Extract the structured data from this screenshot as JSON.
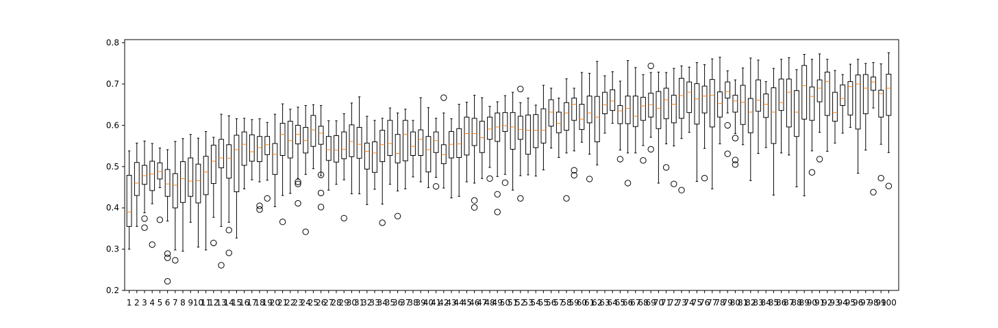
{
  "chart_data": {
    "type": "boxplot",
    "title": "",
    "xlabel": "",
    "ylabel": "",
    "ylim": [
      0.2,
      0.8
    ],
    "yticks": [
      0.2,
      0.3,
      0.4,
      0.5,
      0.6,
      0.7,
      0.8
    ],
    "grid": false,
    "legend": "none",
    "colors": {
      "box": "#000000",
      "median": "#ff7f0e",
      "whisker": "#000000",
      "flier": "#000000"
    },
    "categories": [
      "1",
      "2",
      "3",
      "4",
      "5",
      "6",
      "7",
      "8",
      "9",
      "10",
      "11",
      "12",
      "13",
      "14",
      "15",
      "16",
      "17",
      "18",
      "19",
      "20",
      "21",
      "22",
      "23",
      "24",
      "25",
      "26",
      "27",
      "28",
      "29",
      "30",
      "31",
      "32",
      "33",
      "34",
      "35",
      "36",
      "37",
      "38",
      "39",
      "40",
      "41",
      "42",
      "43",
      "44",
      "45",
      "46",
      "47",
      "48",
      "49",
      "50",
      "51",
      "52",
      "53",
      "54",
      "55",
      "56",
      "57",
      "58",
      "59",
      "60",
      "61",
      "62",
      "63",
      "64",
      "65",
      "66",
      "67",
      "68",
      "69",
      "70",
      "71",
      "72",
      "73",
      "74",
      "75",
      "76",
      "77",
      "78",
      "79",
      "80",
      "81",
      "82",
      "83",
      "84",
      "85",
      "86",
      "87",
      "88",
      "89",
      "90",
      "91",
      "92",
      "93",
      "94",
      "95",
      "96",
      "97",
      "98",
      "99",
      "100"
    ],
    "boxes": [
      {
        "whislo": 0.3,
        "q1": 0.355,
        "med": 0.39,
        "q3": 0.479,
        "whishi": 0.538,
        "fliers": []
      },
      {
        "whislo": 0.355,
        "q1": 0.43,
        "med": 0.46,
        "q3": 0.51,
        "whishi": 0.557,
        "fliers": []
      },
      {
        "whislo": 0.388,
        "q1": 0.457,
        "med": 0.478,
        "q3": 0.503,
        "whishi": 0.562,
        "fliers": [
          0.374,
          0.352
        ]
      },
      {
        "whislo": 0.41,
        "q1": 0.442,
        "med": 0.482,
        "q3": 0.513,
        "whishi": 0.556,
        "fliers": [
          0.311
        ]
      },
      {
        "whislo": 0.449,
        "q1": 0.47,
        "med": 0.488,
        "q3": 0.509,
        "whishi": 0.545,
        "fliers": [
          0.371
        ]
      },
      {
        "whislo": 0.368,
        "q1": 0.428,
        "med": 0.458,
        "q3": 0.493,
        "whishi": 0.541,
        "fliers": [
          0.289,
          0.279,
          0.222
        ]
      },
      {
        "whislo": 0.298,
        "q1": 0.4,
        "med": 0.455,
        "q3": 0.483,
        "whishi": 0.561,
        "fliers": [
          0.273
        ]
      },
      {
        "whislo": 0.295,
        "q1": 0.413,
        "med": 0.471,
        "q3": 0.512,
        "whishi": 0.568,
        "fliers": []
      },
      {
        "whislo": 0.365,
        "q1": 0.428,
        "med": 0.465,
        "q3": 0.521,
        "whishi": 0.578,
        "fliers": []
      },
      {
        "whislo": 0.305,
        "q1": 0.412,
        "med": 0.466,
        "q3": 0.506,
        "whishi": 0.569,
        "fliers": []
      },
      {
        "whislo": 0.298,
        "q1": 0.432,
        "med": 0.487,
        "q3": 0.525,
        "whishi": 0.585,
        "fliers": []
      },
      {
        "whislo": 0.377,
        "q1": 0.459,
        "med": 0.513,
        "q3": 0.552,
        "whishi": 0.571,
        "fliers": [
          0.315
        ]
      },
      {
        "whislo": 0.355,
        "q1": 0.497,
        "med": 0.521,
        "q3": 0.566,
        "whishi": 0.627,
        "fliers": [
          0.261
        ]
      },
      {
        "whislo": 0.365,
        "q1": 0.472,
        "med": 0.52,
        "q3": 0.553,
        "whishi": 0.623,
        "fliers": [
          0.346,
          0.291
        ]
      },
      {
        "whislo": 0.327,
        "q1": 0.439,
        "med": 0.541,
        "q3": 0.576,
        "whishi": 0.616,
        "fliers": []
      },
      {
        "whislo": 0.446,
        "q1": 0.503,
        "med": 0.554,
        "q3": 0.584,
        "whishi": 0.617,
        "fliers": []
      },
      {
        "whislo": 0.468,
        "q1": 0.513,
        "med": 0.536,
        "q3": 0.577,
        "whishi": 0.614,
        "fliers": []
      },
      {
        "whislo": 0.463,
        "q1": 0.512,
        "med": 0.546,
        "q3": 0.573,
        "whishi": 0.616,
        "fliers": [
          0.405,
          0.396
        ]
      },
      {
        "whislo": 0.467,
        "q1": 0.529,
        "med": 0.553,
        "q3": 0.573,
        "whishi": 0.607,
        "fliers": [
          0.423
        ]
      },
      {
        "whislo": 0.403,
        "q1": 0.481,
        "med": 0.53,
        "q3": 0.556,
        "whishi": 0.627,
        "fliers": []
      },
      {
        "whislo": 0.43,
        "q1": 0.527,
        "med": 0.578,
        "q3": 0.605,
        "whishi": 0.652,
        "fliers": [
          0.366
        ]
      },
      {
        "whislo": 0.435,
        "q1": 0.521,
        "med": 0.563,
        "q3": 0.61,
        "whishi": 0.639,
        "fliers": []
      },
      {
        "whislo": 0.471,
        "q1": 0.555,
        "med": 0.578,
        "q3": 0.6,
        "whishi": 0.644,
        "fliers": [
          0.463,
          0.458,
          0.411
        ]
      },
      {
        "whislo": 0.481,
        "q1": 0.533,
        "med": 0.563,
        "q3": 0.595,
        "whishi": 0.648,
        "fliers": [
          0.342
        ]
      },
      {
        "whislo": 0.495,
        "q1": 0.549,
        "med": 0.589,
        "q3": 0.624,
        "whishi": 0.65,
        "fliers": []
      },
      {
        "whislo": 0.478,
        "q1": 0.554,
        "med": 0.581,
        "q3": 0.598,
        "whishi": 0.648,
        "fliers": [
          0.48,
          0.436,
          0.402
        ]
      },
      {
        "whislo": 0.443,
        "q1": 0.515,
        "med": 0.541,
        "q3": 0.573,
        "whishi": 0.611,
        "fliers": []
      },
      {
        "whislo": 0.457,
        "q1": 0.511,
        "med": 0.54,
        "q3": 0.575,
        "whishi": 0.611,
        "fliers": []
      },
      {
        "whislo": 0.468,
        "q1": 0.519,
        "med": 0.542,
        "q3": 0.584,
        "whishi": 0.628,
        "fliers": [
          0.375
        ]
      },
      {
        "whislo": 0.434,
        "q1": 0.524,
        "med": 0.561,
        "q3": 0.601,
        "whishi": 0.654,
        "fliers": []
      },
      {
        "whislo": 0.434,
        "q1": 0.52,
        "med": 0.554,
        "q3": 0.595,
        "whishi": 0.669,
        "fliers": []
      },
      {
        "whislo": 0.408,
        "q1": 0.494,
        "med": 0.537,
        "q3": 0.557,
        "whishi": 0.622,
        "fliers": []
      },
      {
        "whislo": 0.445,
        "q1": 0.486,
        "med": 0.533,
        "q3": 0.56,
        "whishi": 0.612,
        "fliers": []
      },
      {
        "whislo": 0.409,
        "q1": 0.512,
        "med": 0.553,
        "q3": 0.588,
        "whishi": 0.617,
        "fliers": [
          0.364
        ]
      },
      {
        "whislo": 0.457,
        "q1": 0.527,
        "med": 0.556,
        "q3": 0.612,
        "whishi": 0.642,
        "fliers": []
      },
      {
        "whislo": 0.441,
        "q1": 0.509,
        "med": 0.532,
        "q3": 0.578,
        "whishi": 0.63,
        "fliers": [
          0.38
        ]
      },
      {
        "whislo": 0.446,
        "q1": 0.514,
        "med": 0.578,
        "q3": 0.612,
        "whishi": 0.639,
        "fliers": []
      },
      {
        "whislo": 0.475,
        "q1": 0.527,
        "med": 0.549,
        "q3": 0.584,
        "whishi": 0.612,
        "fliers": []
      },
      {
        "whislo": 0.463,
        "q1": 0.527,
        "med": 0.566,
        "q3": 0.589,
        "whishi": 0.667,
        "fliers": []
      },
      {
        "whislo": 0.449,
        "q1": 0.487,
        "med": 0.541,
        "q3": 0.573,
        "whishi": 0.643,
        "fliers": []
      },
      {
        "whislo": 0.474,
        "q1": 0.534,
        "med": 0.563,
        "q3": 0.584,
        "whishi": 0.617,
        "fliers": [
          0.452
        ]
      },
      {
        "whislo": 0.448,
        "q1": 0.507,
        "med": 0.529,
        "q3": 0.553,
        "whishi": 0.63,
        "fliers": [
          0.667
        ]
      },
      {
        "whislo": 0.424,
        "q1": 0.521,
        "med": 0.554,
        "q3": 0.585,
        "whishi": 0.616,
        "fliers": []
      },
      {
        "whislo": 0.428,
        "q1": 0.522,
        "med": 0.555,
        "q3": 0.592,
        "whishi": 0.651,
        "fliers": []
      },
      {
        "whislo": 0.463,
        "q1": 0.528,
        "med": 0.58,
        "q3": 0.62,
        "whishi": 0.656,
        "fliers": []
      },
      {
        "whislo": 0.46,
        "q1": 0.551,
        "med": 0.58,
        "q3": 0.617,
        "whishi": 0.673,
        "fliers": [
          0.418,
          0.401
        ]
      },
      {
        "whislo": 0.471,
        "q1": 0.534,
        "med": 0.57,
        "q3": 0.61,
        "whishi": 0.667,
        "fliers": []
      },
      {
        "whislo": 0.498,
        "q1": 0.566,
        "med": 0.591,
        "q3": 0.62,
        "whishi": 0.646,
        "fliers": [
          0.471
        ]
      },
      {
        "whislo": 0.476,
        "q1": 0.561,
        "med": 0.596,
        "q3": 0.63,
        "whishi": 0.657,
        "fliers": [
          0.433,
          0.39
        ]
      },
      {
        "whislo": 0.481,
        "q1": 0.585,
        "med": 0.599,
        "q3": 0.631,
        "whishi": 0.672,
        "fliers": [
          0.461
        ]
      },
      {
        "whislo": 0.443,
        "q1": 0.542,
        "med": 0.596,
        "q3": 0.631,
        "whishi": 0.68,
        "fliers": []
      },
      {
        "whislo": 0.478,
        "q1": 0.566,
        "med": 0.59,
        "q3": 0.622,
        "whishi": 0.655,
        "fliers": [
          0.688,
          0.423
        ]
      },
      {
        "whislo": 0.48,
        "q1": 0.53,
        "med": 0.588,
        "q3": 0.625,
        "whishi": 0.666,
        "fliers": []
      },
      {
        "whislo": 0.477,
        "q1": 0.546,
        "med": 0.588,
        "q3": 0.626,
        "whishi": 0.649,
        "fliers": []
      },
      {
        "whislo": 0.492,
        "q1": 0.557,
        "med": 0.588,
        "q3": 0.64,
        "whishi": 0.697,
        "fliers": []
      },
      {
        "whislo": 0.545,
        "q1": 0.598,
        "med": 0.632,
        "q3": 0.662,
        "whishi": 0.69,
        "fliers": []
      },
      {
        "whislo": 0.522,
        "q1": 0.582,
        "med": 0.605,
        "q3": 0.632,
        "whishi": 0.666,
        "fliers": []
      },
      {
        "whislo": 0.533,
        "q1": 0.588,
        "med": 0.63,
        "q3": 0.655,
        "whishi": 0.713,
        "fliers": [
          0.423
        ]
      },
      {
        "whislo": 0.538,
        "q1": 0.612,
        "med": 0.651,
        "q3": 0.666,
        "whishi": 0.69,
        "fliers": [
          0.491,
          0.479
        ]
      },
      {
        "whislo": 0.559,
        "q1": 0.59,
        "med": 0.615,
        "q3": 0.651,
        "whishi": 0.728,
        "fliers": []
      },
      {
        "whislo": 0.53,
        "q1": 0.606,
        "med": 0.63,
        "q3": 0.671,
        "whishi": 0.726,
        "fliers": [
          0.47
        ]
      },
      {
        "whislo": 0.504,
        "q1": 0.56,
        "med": 0.62,
        "q3": 0.67,
        "whishi": 0.755,
        "fliers": []
      },
      {
        "whislo": 0.581,
        "q1": 0.628,
        "med": 0.65,
        "q3": 0.68,
        "whishi": 0.72,
        "fliers": []
      },
      {
        "whislo": 0.605,
        "q1": 0.636,
        "med": 0.659,
        "q3": 0.686,
        "whishi": 0.73,
        "fliers": []
      },
      {
        "whislo": 0.54,
        "q1": 0.604,
        "med": 0.635,
        "q3": 0.648,
        "whishi": 0.707,
        "fliers": [
          0.518
        ]
      },
      {
        "whislo": 0.533,
        "q1": 0.604,
        "med": 0.641,
        "q3": 0.671,
        "whishi": 0.757,
        "fliers": [
          0.46
        ]
      },
      {
        "whislo": 0.533,
        "q1": 0.597,
        "med": 0.622,
        "q3": 0.671,
        "whishi": 0.74,
        "fliers": []
      },
      {
        "whislo": 0.551,
        "q1": 0.612,
        "med": 0.647,
        "q3": 0.668,
        "whishi": 0.723,
        "fliers": [
          0.515
        ]
      },
      {
        "whislo": 0.571,
        "q1": 0.62,
        "med": 0.65,
        "q3": 0.678,
        "whishi": 0.728,
        "fliers": [
          0.744,
          0.542
        ]
      },
      {
        "whislo": 0.46,
        "q1": 0.592,
        "med": 0.641,
        "q3": 0.682,
        "whishi": 0.729,
        "fliers": []
      },
      {
        "whislo": 0.555,
        "q1": 0.616,
        "med": 0.662,
        "q3": 0.69,
        "whishi": 0.728,
        "fliers": [
          0.498
        ]
      },
      {
        "whislo": 0.55,
        "q1": 0.606,
        "med": 0.651,
        "q3": 0.673,
        "whishi": 0.738,
        "fliers": [
          0.458
        ]
      },
      {
        "whislo": 0.568,
        "q1": 0.617,
        "med": 0.672,
        "q3": 0.714,
        "whishi": 0.744,
        "fliers": [
          0.443
        ]
      },
      {
        "whislo": 0.583,
        "q1": 0.631,
        "med": 0.68,
        "q3": 0.705,
        "whishi": 0.741,
        "fliers": []
      },
      {
        "whislo": 0.464,
        "q1": 0.603,
        "med": 0.664,
        "q3": 0.701,
        "whishi": 0.752,
        "fliers": []
      },
      {
        "whislo": 0.544,
        "q1": 0.63,
        "med": 0.671,
        "q3": 0.695,
        "whishi": 0.747,
        "fliers": [
          0.472
        ]
      },
      {
        "whislo": 0.446,
        "q1": 0.596,
        "med": 0.673,
        "q3": 0.711,
        "whishi": 0.761,
        "fliers": []
      },
      {
        "whislo": 0.555,
        "q1": 0.62,
        "med": 0.653,
        "q3": 0.681,
        "whishi": 0.765,
        "fliers": []
      },
      {
        "whislo": 0.63,
        "q1": 0.666,
        "med": 0.682,
        "q3": 0.705,
        "whishi": 0.732,
        "fliers": [
          0.6,
          0.531
        ]
      },
      {
        "whislo": 0.58,
        "q1": 0.632,
        "med": 0.659,
        "q3": 0.673,
        "whishi": 0.71,
        "fliers": [
          0.569,
          0.516,
          0.505
        ]
      },
      {
        "whislo": 0.553,
        "q1": 0.602,
        "med": 0.656,
        "q3": 0.697,
        "whishi": 0.739,
        "fliers": []
      },
      {
        "whislo": 0.466,
        "q1": 0.582,
        "med": 0.632,
        "q3": 0.665,
        "whishi": 0.763,
        "fliers": []
      },
      {
        "whislo": 0.532,
        "q1": 0.634,
        "med": 0.661,
        "q3": 0.71,
        "whishi": 0.758,
        "fliers": []
      },
      {
        "whislo": 0.546,
        "q1": 0.619,
        "med": 0.651,
        "q3": 0.676,
        "whishi": 0.706,
        "fliers": []
      },
      {
        "whislo": 0.431,
        "q1": 0.556,
        "med": 0.632,
        "q3": 0.691,
        "whishi": 0.738,
        "fliers": []
      },
      {
        "whislo": 0.533,
        "q1": 0.636,
        "med": 0.655,
        "q3": 0.712,
        "whishi": 0.76,
        "fliers": []
      },
      {
        "whislo": 0.528,
        "q1": 0.596,
        "med": 0.68,
        "q3": 0.712,
        "whishi": 0.764,
        "fliers": []
      },
      {
        "whislo": 0.451,
        "q1": 0.573,
        "med": 0.632,
        "q3": 0.684,
        "whishi": 0.735,
        "fliers": []
      },
      {
        "whislo": 0.429,
        "q1": 0.615,
        "med": 0.696,
        "q3": 0.745,
        "whishi": 0.772,
        "fliers": []
      },
      {
        "whislo": 0.538,
        "q1": 0.612,
        "med": 0.67,
        "q3": 0.693,
        "whishi": 0.76,
        "fliers": [
          0.486
        ]
      },
      {
        "whislo": 0.583,
        "q1": 0.657,
        "med": 0.69,
        "q3": 0.71,
        "whishi": 0.773,
        "fliers": [
          0.518
        ]
      },
      {
        "whislo": 0.537,
        "q1": 0.624,
        "med": 0.706,
        "q3": 0.729,
        "whishi": 0.76,
        "fliers": []
      },
      {
        "whislo": 0.557,
        "q1": 0.61,
        "med": 0.631,
        "q3": 0.68,
        "whishi": 0.733,
        "fliers": []
      },
      {
        "whislo": 0.581,
        "q1": 0.648,
        "med": 0.665,
        "q3": 0.698,
        "whishi": 0.723,
        "fliers": []
      },
      {
        "whislo": 0.595,
        "q1": 0.625,
        "med": 0.694,
        "q3": 0.706,
        "whishi": 0.748,
        "fliers": []
      },
      {
        "whislo": 0.484,
        "q1": 0.591,
        "med": 0.7,
        "q3": 0.722,
        "whishi": 0.76,
        "fliers": []
      },
      {
        "whislo": 0.54,
        "q1": 0.628,
        "med": 0.69,
        "q3": 0.723,
        "whishi": 0.75,
        "fliers": []
      },
      {
        "whislo": 0.642,
        "q1": 0.685,
        "med": 0.705,
        "q3": 0.717,
        "whishi": 0.752,
        "fliers": [
          0.438
        ]
      },
      {
        "whislo": 0.554,
        "q1": 0.62,
        "med": 0.677,
        "q3": 0.685,
        "whishi": 0.749,
        "fliers": [
          0.472
        ]
      },
      {
        "whislo": 0.534,
        "q1": 0.624,
        "med": 0.69,
        "q3": 0.724,
        "whishi": 0.776,
        "fliers": [
          0.453
        ]
      }
    ]
  }
}
